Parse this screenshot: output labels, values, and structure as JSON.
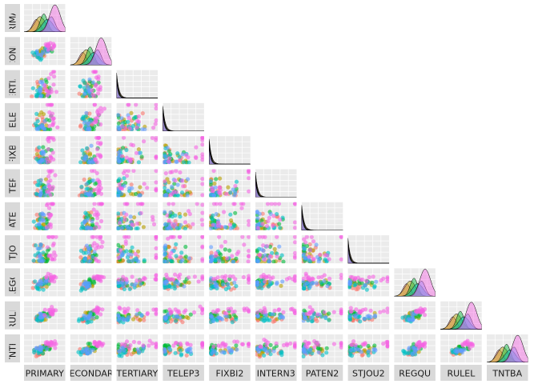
{
  "chart_data": {
    "type": "scatter",
    "layout": "pairs-matrix-lower-triangle",
    "title": "",
    "variables": [
      "PRIMARY",
      "SECONDARY",
      "TERTIARY",
      "TELEP3",
      "FIXBI2",
      "INTERN3",
      "PATEN2",
      "STJOU2",
      "REGQU",
      "RULEL",
      "TNTBA"
    ],
    "diagonal": "density",
    "off_diagonal": "scatter",
    "upper_triangle": "blank",
    "grid": true,
    "panel_background": "#ebebeb",
    "strip_background": "#d9d9d9",
    "group_colors": [
      "#f8766d",
      "#b79f00",
      "#00ba38",
      "#00bfc4",
      "#619cff",
      "#f564e3"
    ]
  }
}
